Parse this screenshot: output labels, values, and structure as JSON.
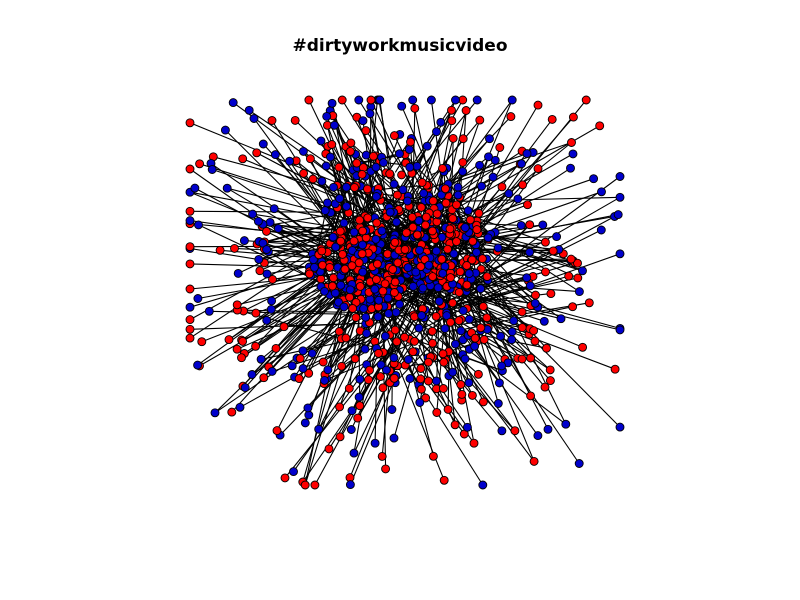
{
  "title": "#dirtyworkmusicvideo",
  "graph": {
    "type": "network",
    "node_count_approx": 1200,
    "colors": {
      "group_a": "#ff0000",
      "group_b": "#0000cc",
      "edge": "#000000",
      "node_outline": "#000000",
      "background": "#ffffff"
    }
  }
}
